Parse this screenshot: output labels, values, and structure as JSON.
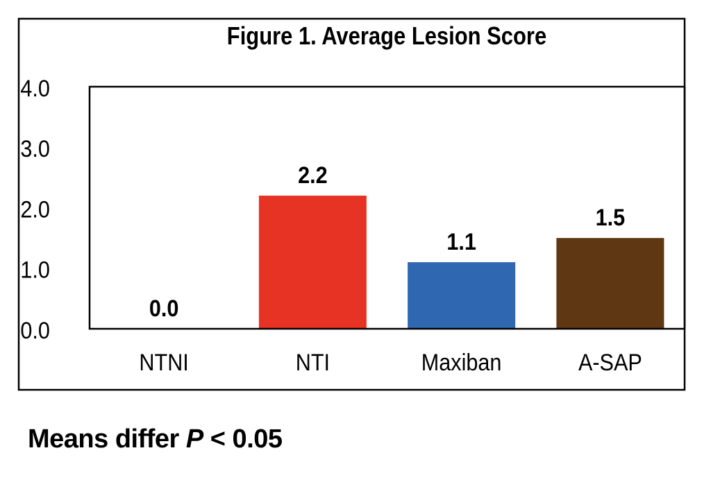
{
  "chart_data": {
    "type": "bar",
    "title": "Figure 1. Average Lesion Score",
    "categories": [
      "NTNI",
      "NTI",
      "Maxiban",
      "A-SAP"
    ],
    "values": [
      0.0,
      2.2,
      1.1,
      1.5
    ],
    "value_labels": [
      "0.0",
      "2.2",
      "1.1",
      "1.5"
    ],
    "colors": [
      "#ffffff",
      "#e63323",
      "#2f67b1",
      "#5f3713"
    ],
    "ylim": [
      0,
      4
    ],
    "yticks": [
      0,
      1,
      2,
      3,
      4
    ],
    "ytick_labels": [
      "0.0",
      "1.0",
      "2.0",
      "3.0",
      "4.0"
    ],
    "xlabel": "",
    "ylabel": "",
    "grid": false,
    "legend": false
  },
  "footnote": {
    "prefix": "Means differ ",
    "italic": "P",
    "suffix": " < 0.05"
  }
}
